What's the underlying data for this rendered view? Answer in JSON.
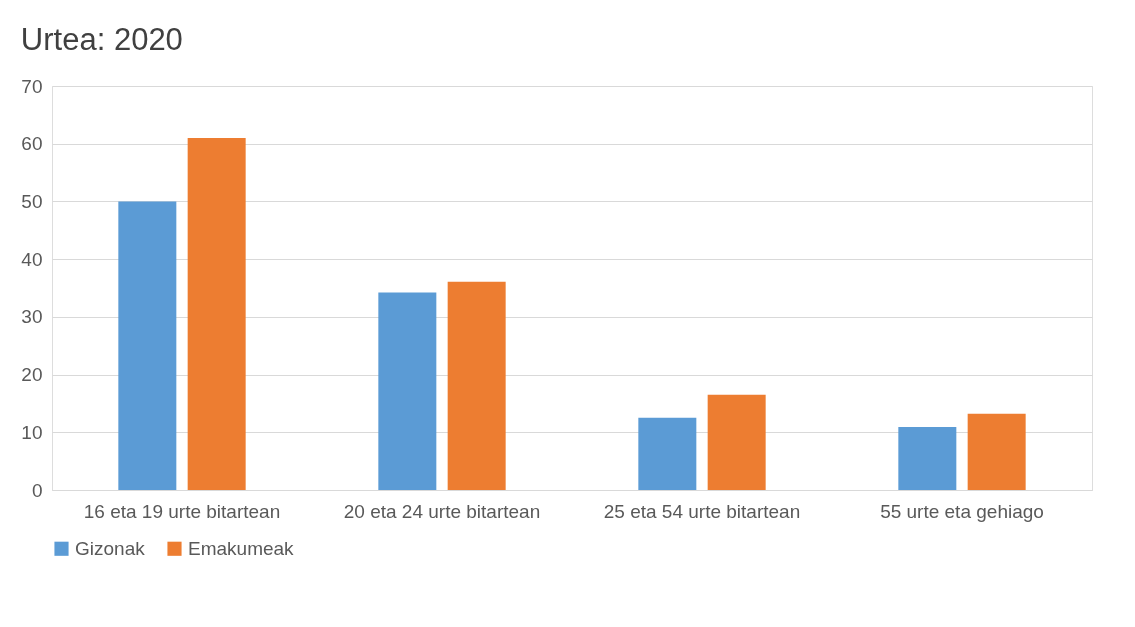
{
  "chart_data": {
    "type": "bar",
    "title": "Urtea: 2020",
    "categories": [
      "16 eta 19 urte bitartean",
      "20 eta 24 urte bitartean",
      "25 eta 54 urte bitartean",
      "55 urte eta gehiago"
    ],
    "series": [
      {
        "name": "Gizonak",
        "color": "#5b9bd5",
        "values": [
          50.0,
          34.2,
          12.5,
          10.9
        ]
      },
      {
        "name": "Emakumeak",
        "color": "#ed7d31",
        "values": [
          61.0,
          36.1,
          16.5,
          13.2
        ]
      }
    ],
    "ylim": [
      0,
      70
    ],
    "yticks": [
      0,
      10,
      20,
      30,
      40,
      50,
      60,
      70
    ],
    "grid": "y",
    "legend": "bottom"
  }
}
